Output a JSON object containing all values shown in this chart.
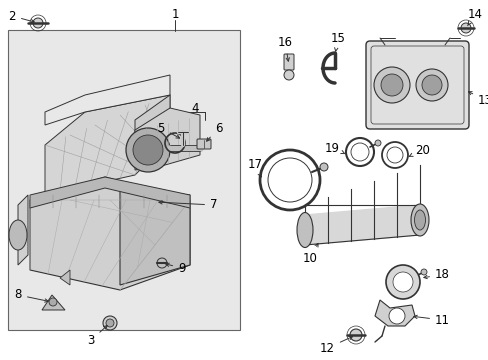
{
  "bg_color": "#ffffff",
  "box_bg": "#f0f0f0",
  "line_color": "#333333",
  "text_color": "#000000",
  "fig_w": 4.89,
  "fig_h": 3.6,
  "dpi": 100
}
